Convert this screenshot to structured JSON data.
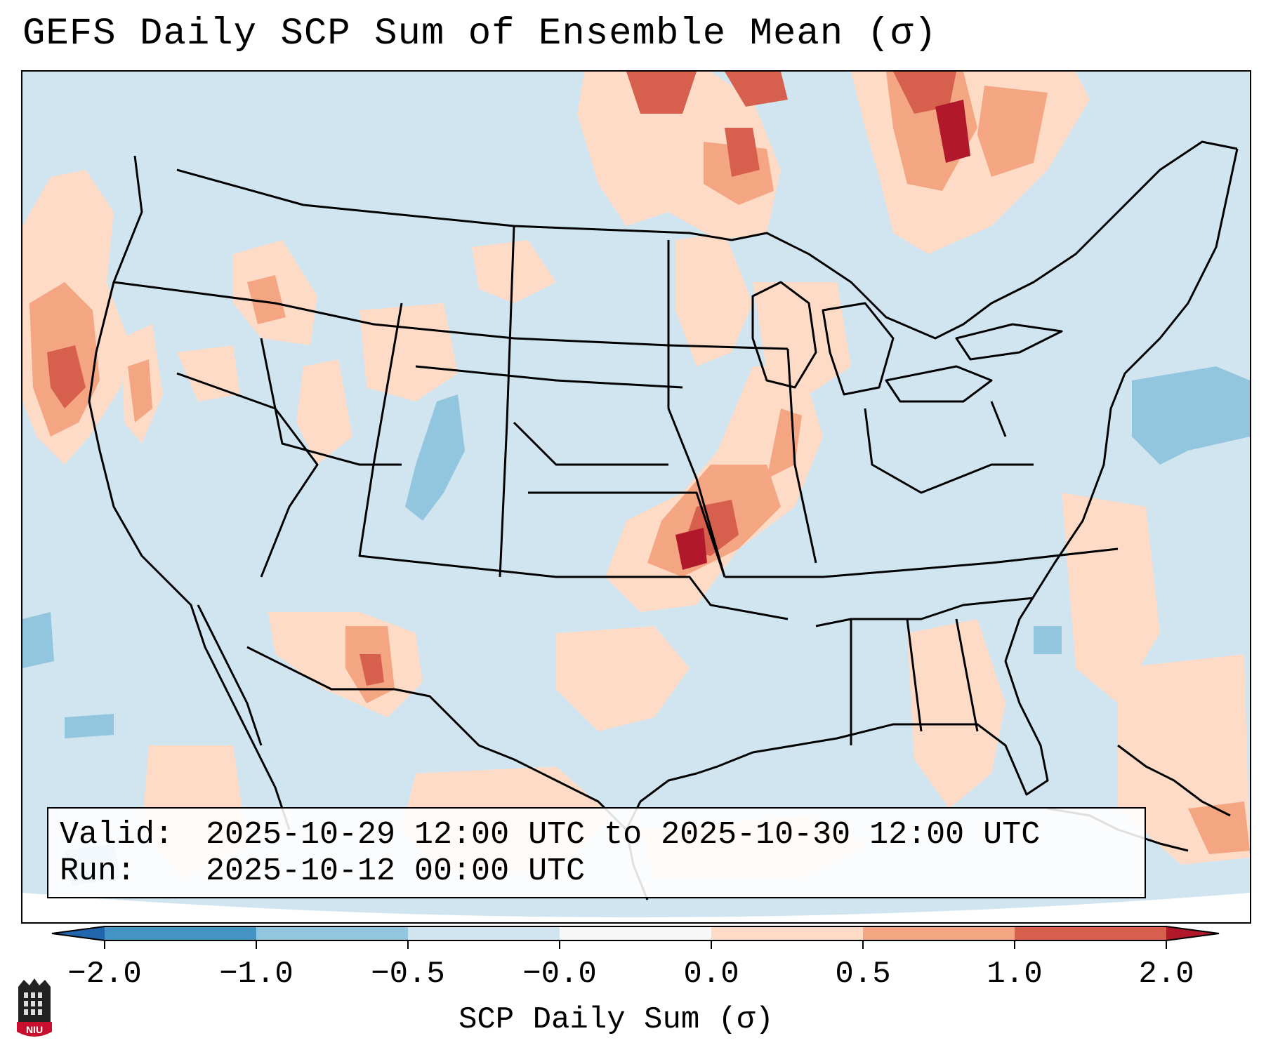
{
  "title": "GEFS Daily SCP Sum of Ensemble Mean (σ)",
  "valid_box": {
    "valid_label": "Valid:",
    "valid_value": "2025-10-29 12:00 UTC to 2025-10-30 12:00 UTC",
    "run_label": "Run:",
    "run_value": "2025-10-12 00:00 UTC"
  },
  "colorbar": {
    "label": "SCP Daily Sum (σ)",
    "ticks": [
      "−2.0",
      "−1.0",
      "−0.5",
      "−0.0",
      "0.0",
      "0.5",
      "1.0",
      "2.0"
    ],
    "colors": {
      "below_min": "#2166ac",
      "bin_1": "#4393c3",
      "bin_2": "#92c5de",
      "bin_3": "#d1e5f0",
      "bin_4": "#f7f7f7",
      "bin_5": "#fddbc7",
      "bin_6": "#f4a582",
      "bin_7": "#d6604d",
      "above_max": "#b2182b"
    }
  },
  "logo": {
    "text": "NIU",
    "color": "#c8102e"
  }
}
